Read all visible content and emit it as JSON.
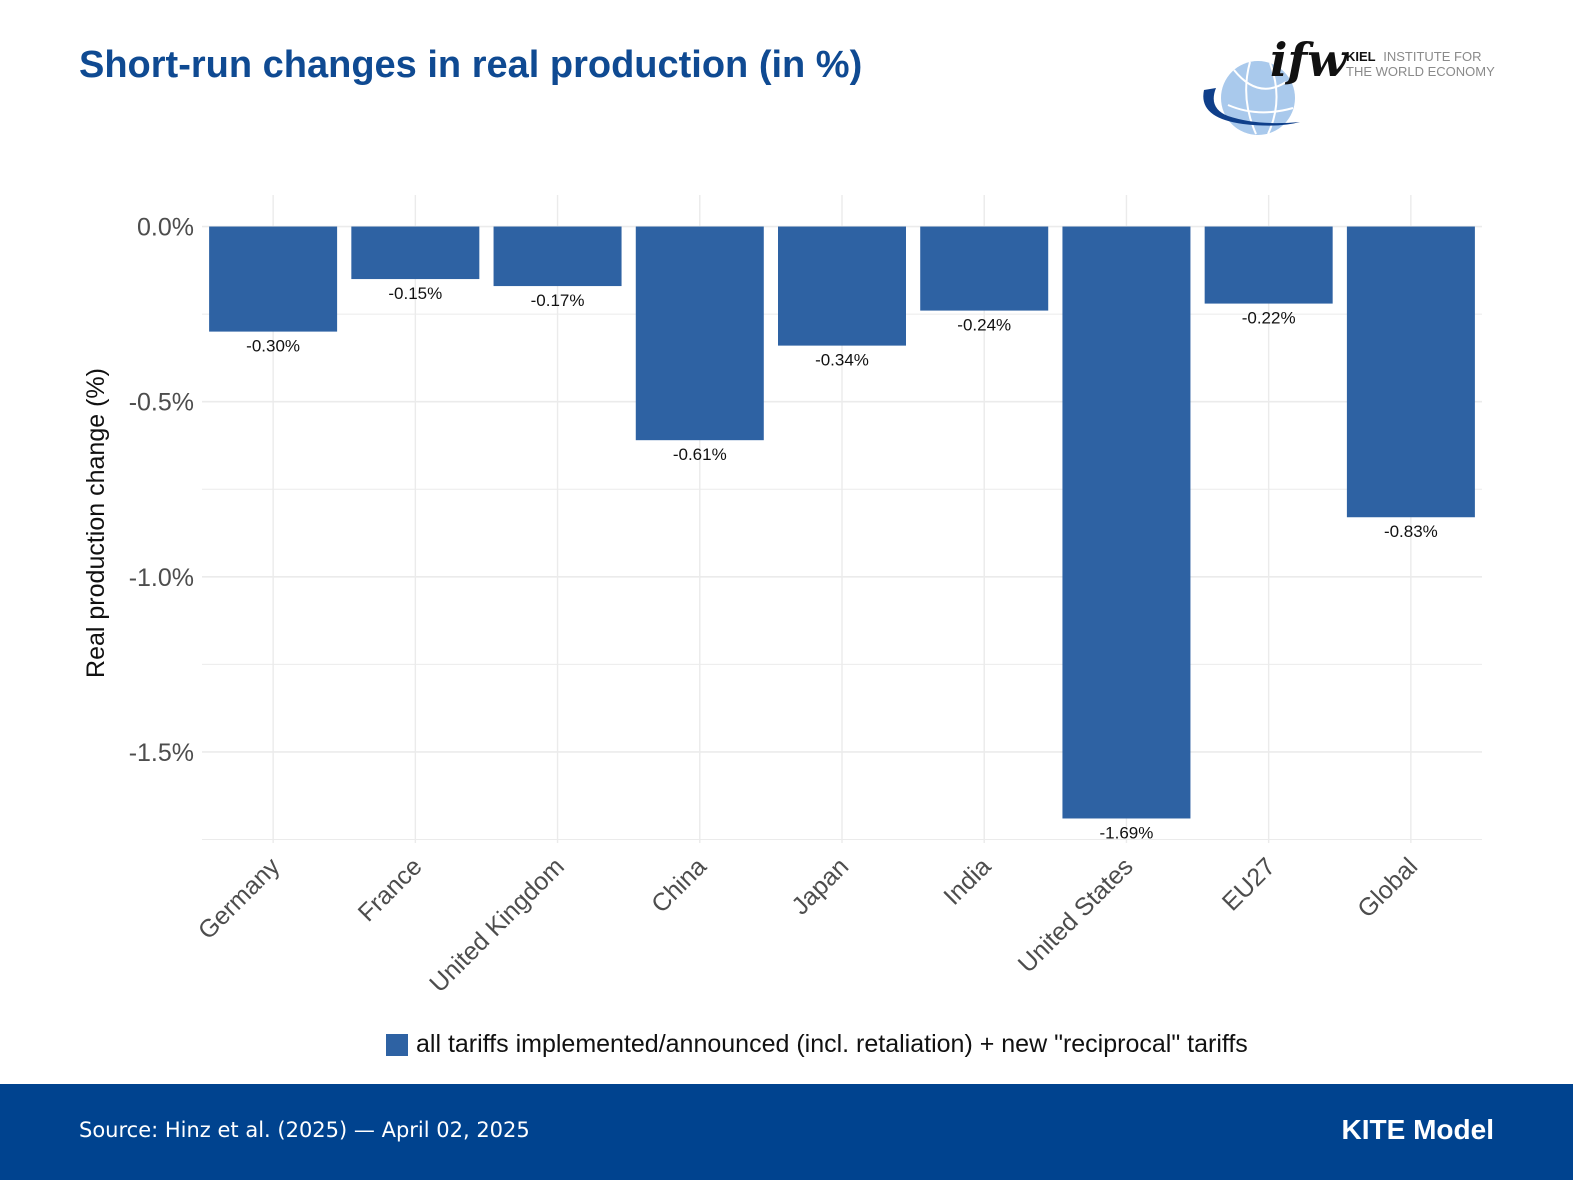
{
  "header": {
    "title": "Short-run changes in real production (in %)",
    "logo": {
      "wordmark": "ifw",
      "line1": "KIEL",
      "line1_rest": "INSTITUTE FOR",
      "line2": "THE WORLD ECONOMY",
      "icon": "globe-swoosh-icon"
    }
  },
  "colors": {
    "bar": "#2e62a3",
    "title": "#0f4a92",
    "footer_bg": "#00438f",
    "grid": "#ebebeb",
    "axis_text": "#4d4d4d"
  },
  "chart_data": {
    "type": "bar",
    "title": "Short-run changes in real production (in %)",
    "xlabel": "",
    "ylabel": "Real production change (%)",
    "categories": [
      "Germany",
      "France",
      "United Kingdom",
      "China",
      "Japan",
      "India",
      "United States",
      "EU27",
      "Global"
    ],
    "series": [
      {
        "name": "all tariffs implemented/announced (incl. retaliation) + new \"reciprocal\" tariffs",
        "values": [
          -0.3,
          -0.15,
          -0.17,
          -0.61,
          -0.34,
          -0.24,
          -1.69,
          -0.22,
          -0.83
        ],
        "data_labels": [
          "-0.30%",
          "-0.15%",
          "-0.17%",
          "-0.61%",
          "-0.34%",
          "-0.24%",
          "-1.69%",
          "-0.22%",
          "-0.83%"
        ]
      }
    ],
    "y_ticks": [
      0.0,
      -0.5,
      -1.0,
      -1.5
    ],
    "y_tick_labels": [
      "0.0%",
      "-0.5%",
      "-1.0%",
      "-1.5%"
    ],
    "ylim": [
      -1.76,
      0.09
    ],
    "grid": true,
    "legend_position": "bottom"
  },
  "footer": {
    "source": "Source: Hinz et al. (2025) — April 02, 2025",
    "model": "KITE Model"
  }
}
